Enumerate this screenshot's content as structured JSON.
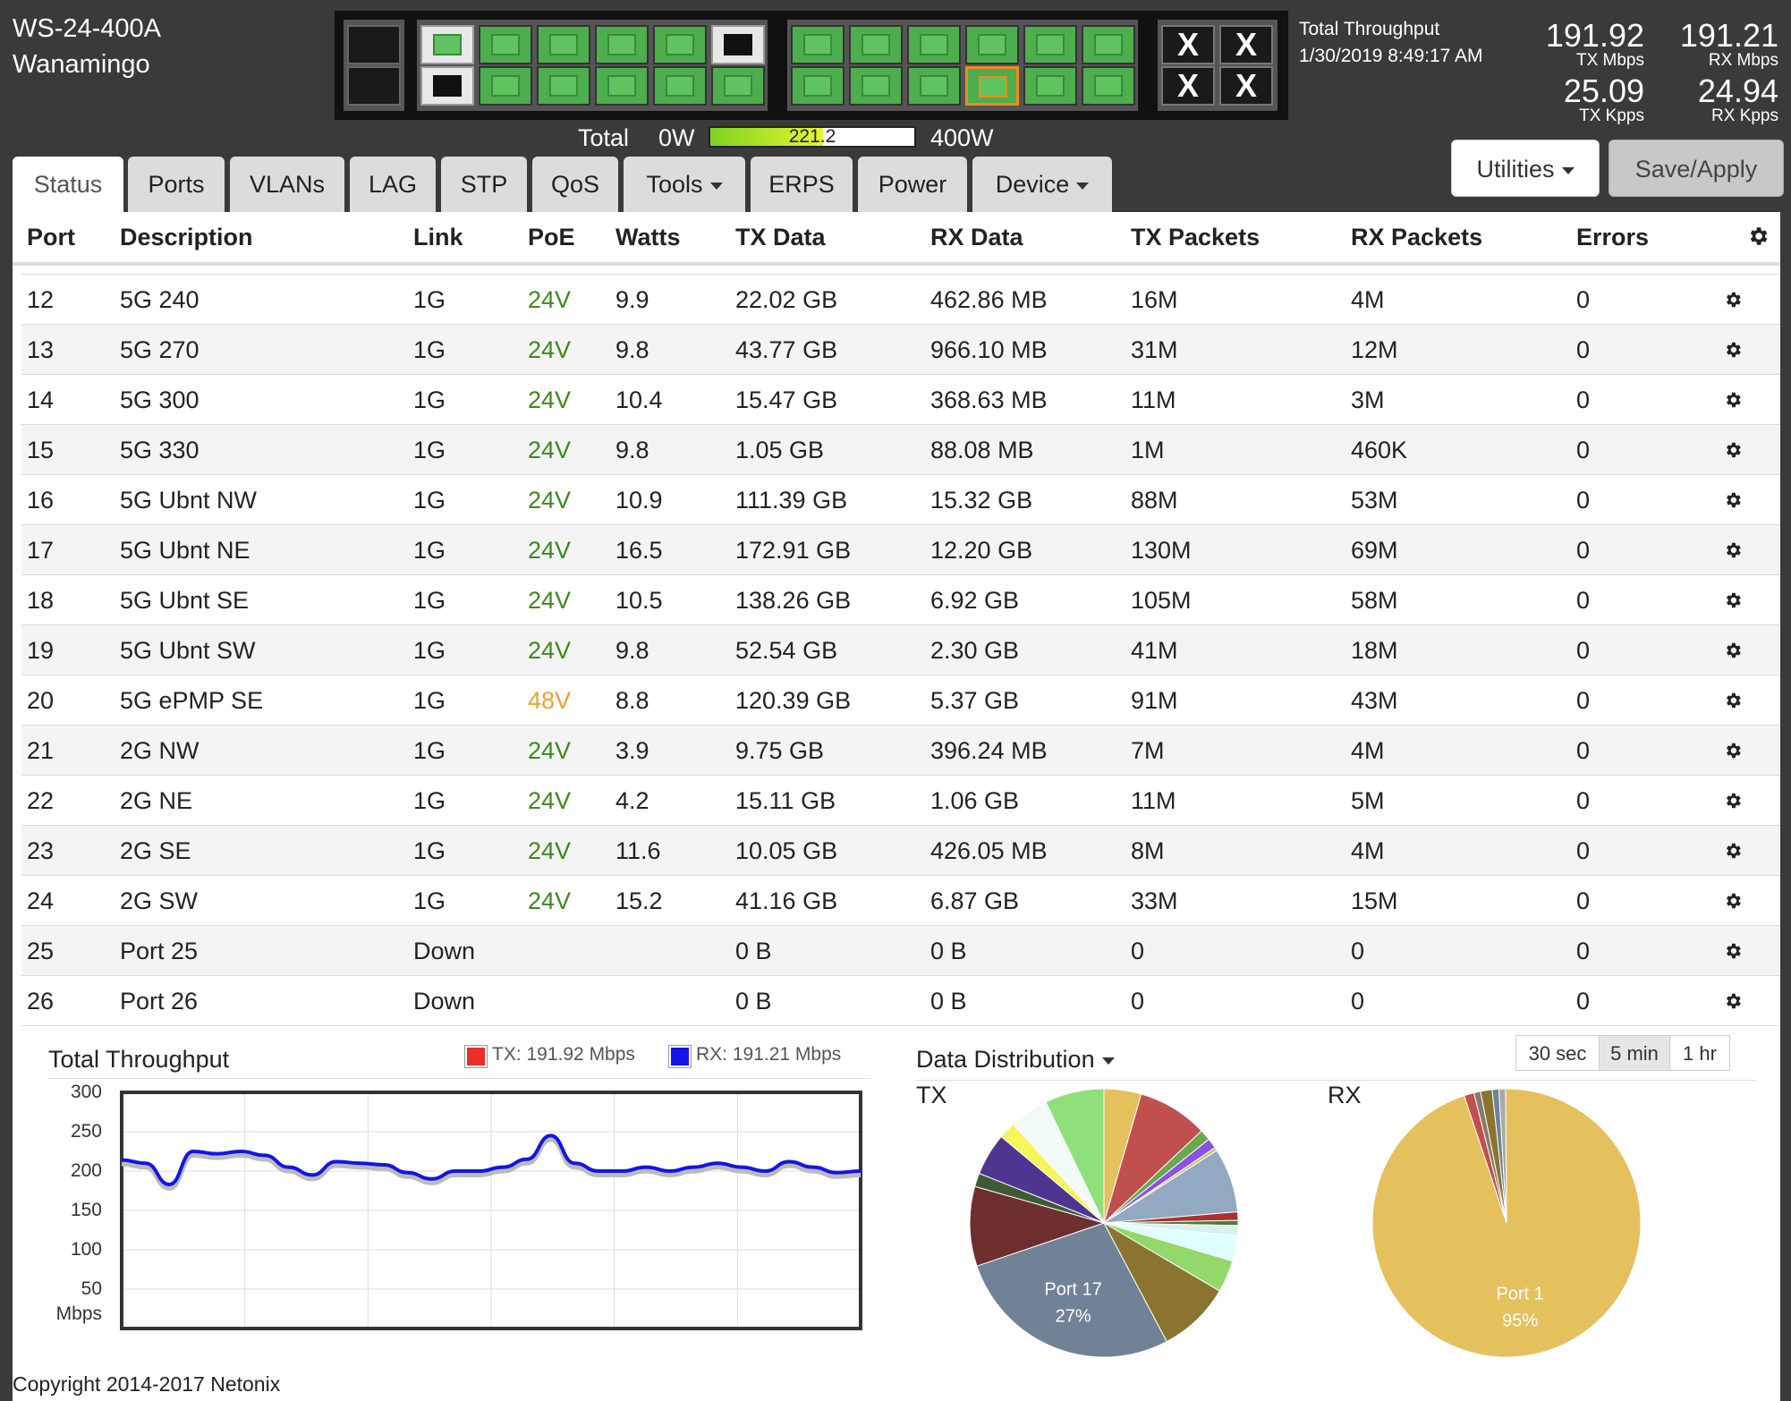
{
  "device": {
    "model": "WS-24-400A",
    "location": "Wanamingo"
  },
  "power": {
    "total_label": "Total",
    "min_label": "0W",
    "max_label": "400W",
    "value": "221.2",
    "fraction": 0.553
  },
  "throughput": {
    "label": "Total Throughput",
    "timestamp": "1/30/2019 8:49:17 AM",
    "tx_mbps": "191.92",
    "tx_mbps_label": "TX Mbps",
    "rx_mbps": "191.21",
    "rx_mbps_label": "RX Mbps",
    "tx_kpps": "25.09",
    "tx_kpps_label": "TX Kpps",
    "rx_kpps": "24.94",
    "rx_kpps_label": "RX Kpps"
  },
  "toolbar": {
    "utilities_label": "Utilities",
    "save_label": "Save/Apply"
  },
  "tabs": [
    {
      "label": "Status"
    },
    {
      "label": "Ports"
    },
    {
      "label": "VLANs"
    },
    {
      "label": "LAG"
    },
    {
      "label": "STP"
    },
    {
      "label": "QoS"
    },
    {
      "label": "Tools"
    },
    {
      "label": "ERPS"
    },
    {
      "label": "Power"
    },
    {
      "label": "Device"
    }
  ],
  "table": {
    "headers": [
      "Port",
      "Description",
      "Link",
      "PoE",
      "Watts",
      "TX Data",
      "RX Data",
      "TX Packets",
      "RX Packets",
      "Errors"
    ],
    "rows": [
      [
        "12",
        "5G 240",
        "1G",
        "24V",
        "9.9",
        "22.02 GB",
        "462.86 MB",
        "16M",
        "4M",
        "0"
      ],
      [
        "13",
        "5G 270",
        "1G",
        "24V",
        "9.8",
        "43.77 GB",
        "966.10 MB",
        "31M",
        "12M",
        "0"
      ],
      [
        "14",
        "5G 300",
        "1G",
        "24V",
        "10.4",
        "15.47 GB",
        "368.63 MB",
        "11M",
        "3M",
        "0"
      ],
      [
        "15",
        "5G 330",
        "1G",
        "24V",
        "9.8",
        "1.05 GB",
        "88.08 MB",
        "1M",
        "460K",
        "0"
      ],
      [
        "16",
        "5G Ubnt NW",
        "1G",
        "24V",
        "10.9",
        "111.39 GB",
        "15.32 GB",
        "88M",
        "53M",
        "0"
      ],
      [
        "17",
        "5G Ubnt NE",
        "1G",
        "24V",
        "16.5",
        "172.91 GB",
        "12.20 GB",
        "130M",
        "69M",
        "0"
      ],
      [
        "18",
        "5G Ubnt SE",
        "1G",
        "24V",
        "10.5",
        "138.26 GB",
        "6.92 GB",
        "105M",
        "58M",
        "0"
      ],
      [
        "19",
        "5G Ubnt SW",
        "1G",
        "24V",
        "9.8",
        "52.54 GB",
        "2.30 GB",
        "41M",
        "18M",
        "0"
      ],
      [
        "20",
        "5G ePMP SE",
        "1G",
        "48V",
        "8.8",
        "120.39 GB",
        "5.37 GB",
        "91M",
        "43M",
        "0"
      ],
      [
        "21",
        "2G NW",
        "1G",
        "24V",
        "3.9",
        "9.75 GB",
        "396.24 MB",
        "7M",
        "4M",
        "0"
      ],
      [
        "22",
        "2G NE",
        "1G",
        "24V",
        "4.2",
        "15.11 GB",
        "1.06 GB",
        "11M",
        "5M",
        "0"
      ],
      [
        "23",
        "2G SE",
        "1G",
        "24V",
        "11.6",
        "10.05 GB",
        "426.05 MB",
        "8M",
        "4M",
        "0"
      ],
      [
        "24",
        "2G SW",
        "1G",
        "24V",
        "15.2",
        "41.16 GB",
        "6.87 GB",
        "33M",
        "15M",
        "0"
      ],
      [
        "25",
        "Port 25",
        "Down",
        "",
        "",
        "0 B",
        "0 B",
        "0",
        "0",
        "0"
      ],
      [
        "26",
        "Port 26",
        "Down",
        "",
        "",
        "0 B",
        "0 B",
        "0",
        "0",
        "0"
      ]
    ]
  },
  "chart_data": [
    {
      "type": "line",
      "title": "Total Throughput",
      "ylabel": "Mbps",
      "ylim": [
        0,
        300
      ],
      "yticks": [
        300,
        250,
        200,
        150,
        100,
        50
      ],
      "legend": [
        {
          "name": "TX: 191.92 Mbps",
          "color": "#e8302a"
        },
        {
          "name": "RX: 191.21 Mbps",
          "color": "#1414e6"
        }
      ],
      "series": [
        {
          "color": "#1414e6",
          "values": [
            214,
            210,
            183,
            225,
            222,
            225,
            220,
            205,
            195,
            212,
            210,
            208,
            198,
            190,
            200,
            200,
            205,
            215,
            245,
            210,
            200,
            200,
            205,
            200,
            205,
            210,
            205,
            200,
            212,
            205,
            198,
            200
          ]
        }
      ]
    },
    {
      "type": "pie",
      "title": "Data Distribution",
      "dropdown": true,
      "ranges": [
        "30 sec",
        "5 min",
        "1 hr"
      ],
      "active_range": "5 min",
      "pies": [
        {
          "name": "TX",
          "slices": [
            {
              "value": 4.4,
              "color": "#e5c15e"
            },
            {
              "value": 8.3,
              "color": "#c0504d"
            },
            {
              "value": 1.3,
              "color": "#6aa84f"
            },
            {
              "value": 1.2,
              "color": "#8c52e0"
            },
            {
              "value": 0.4,
              "color": "#c8c860"
            },
            {
              "value": 7.6,
              "color": "#93a9c1"
            },
            {
              "value": 1.0,
              "color": "#a83232"
            },
            {
              "value": 0.6,
              "color": "#4a7a3a"
            },
            {
              "value": 1.2,
              "color": "#d6f2ee"
            },
            {
              "value": 3.0,
              "color": "#e0ffff"
            },
            {
              "value": 3.8,
              "color": "#92d86a"
            },
            {
              "value": 8.6,
              "color": "#8a7430"
            },
            {
              "value": 27,
              "color": "#708396",
              "label": "Port 17",
              "pct": "27%"
            },
            {
              "value": 9.4,
              "color": "#6e2f2f"
            },
            {
              "value": 1.6,
              "color": "#3d5a35"
            },
            {
              "value": 5.0,
              "color": "#4d3590"
            },
            {
              "value": 2.0,
              "color": "#f5f55c"
            },
            {
              "value": 4.6,
              "color": "#f2fafa"
            },
            {
              "value": 7.0,
              "color": "#8fe07a"
            }
          ]
        },
        {
          "name": "RX",
          "slices": [
            {
              "value": 95,
              "color": "#e5c15e",
              "label": "Port 1",
              "pct": "95%"
            },
            {
              "value": 1.2,
              "color": "#c0504d"
            },
            {
              "value": 0.8,
              "color": "#8a7a6a"
            },
            {
              "value": 1.4,
              "color": "#8a7430"
            },
            {
              "value": 0.8,
              "color": "#708396"
            },
            {
              "value": 0.8,
              "color": "#aaa"
            }
          ]
        }
      ]
    }
  ],
  "footer": {
    "copyright": "Copyright 2014-2017 Netonix"
  }
}
